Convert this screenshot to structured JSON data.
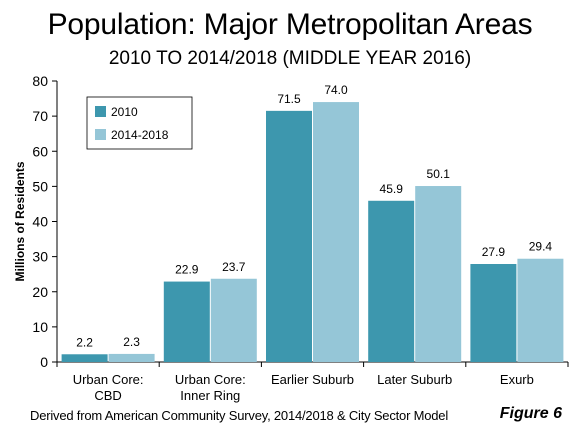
{
  "header": {
    "title": "Population: Major Metropolitan Areas",
    "subtitle": "2010 TO 2014/2018 (MIDDLE YEAR 2016)"
  },
  "footer": {
    "source": "Derived from American Community Survey, 2014/2018 & City Sector Model",
    "figure": "Figure 6"
  },
  "chart_data": {
    "type": "bar",
    "title": "Population: Major Metropolitan Areas",
    "subtitle": "2010 TO 2014/2018 (MIDDLE YEAR 2016)",
    "categories": [
      [
        "Urban Core:",
        "CBD"
      ],
      [
        "Urban Core:",
        "Inner Ring"
      ],
      [
        "Earlier Suburb"
      ],
      [
        "Later Suburb"
      ],
      [
        "Exurb"
      ]
    ],
    "series": [
      {
        "name": "2010",
        "values": [
          2.2,
          22.9,
          71.5,
          45.9,
          27.9
        ],
        "color": "#3d97ae"
      },
      {
        "name": "2014-2018",
        "values": [
          2.3,
          23.7,
          74.0,
          50.1,
          29.4
        ],
        "color": "#95c6d7"
      }
    ],
    "xlabel": "",
    "ylabel": "Millions of Residents",
    "ylim": [
      0,
      80
    ],
    "yticks": [
      0,
      10,
      20,
      30,
      40,
      50,
      60,
      70,
      80
    ],
    "grid": false,
    "legend": "top-left"
  }
}
